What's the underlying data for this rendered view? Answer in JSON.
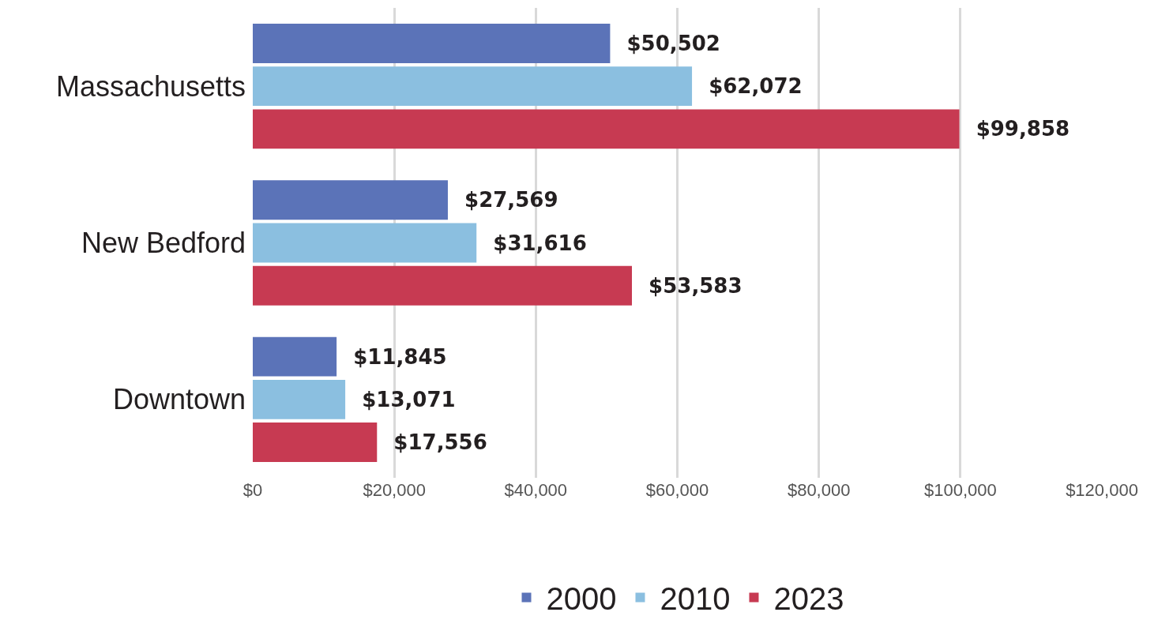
{
  "chart_data": {
    "type": "bar",
    "orientation": "horizontal",
    "categories": [
      "Massachusetts",
      "New Bedford",
      "Downtown"
    ],
    "series": [
      {
        "name": "2000",
        "color": "#5b73b8",
        "values": [
          50502,
          27569,
          11845
        ],
        "value_labels": [
          "$50,502",
          "$27,569",
          "$11,845"
        ]
      },
      {
        "name": "2010",
        "color": "#8bbfe0",
        "values": [
          62072,
          31616,
          13071
        ],
        "value_labels": [
          "$62,072",
          "$31,616",
          "$13,071"
        ]
      },
      {
        "name": "2023",
        "color": "#c73a52",
        "values": [
          99858,
          53583,
          17556
        ],
        "value_labels": [
          "$99,858",
          "$53,583",
          "$17,556"
        ]
      }
    ],
    "xlim": [
      0,
      120000
    ],
    "xticks": [
      {
        "value": 0,
        "label": "$0"
      },
      {
        "value": 20000,
        "label": "$20,000"
      },
      {
        "value": 40000,
        "label": "$40,000"
      },
      {
        "value": 60000,
        "label": "$60,000"
      },
      {
        "value": 80000,
        "label": "$80,000"
      },
      {
        "value": 100000,
        "label": "$100,000"
      },
      {
        "value": 120000,
        "label": "$120,000"
      }
    ],
    "grid": "x",
    "legend": "bottom"
  }
}
